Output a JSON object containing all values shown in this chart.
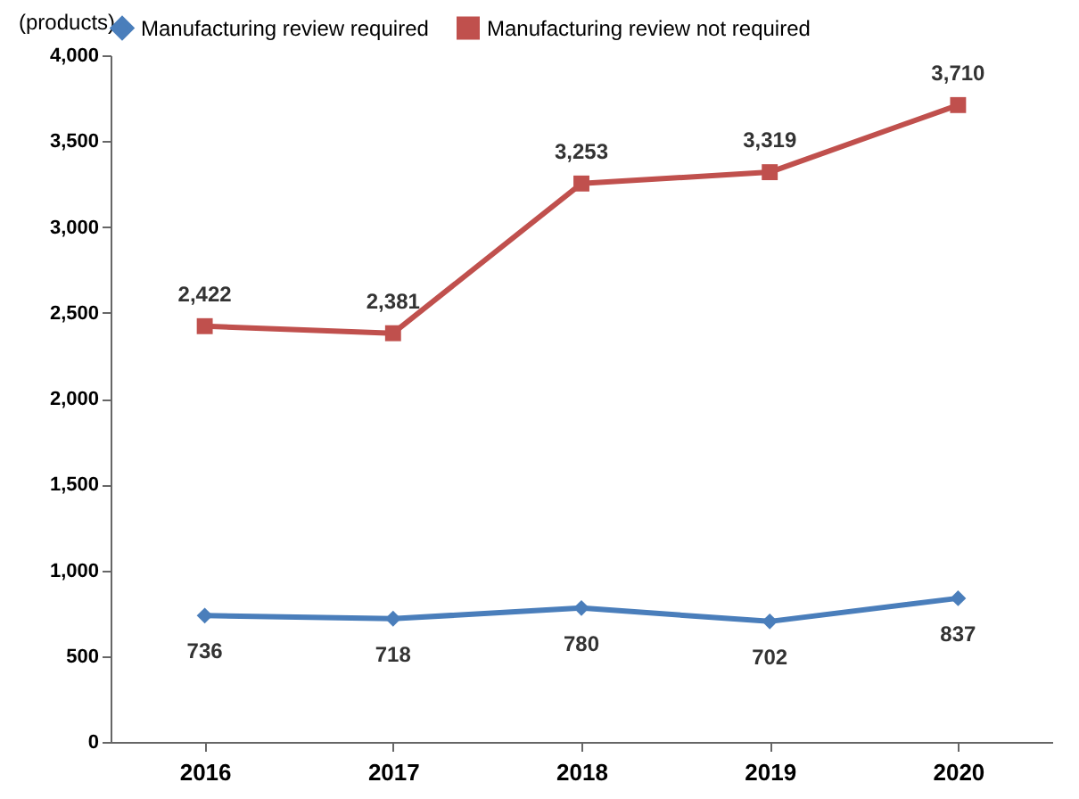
{
  "chart_data": {
    "type": "line",
    "ylabel": "(products)",
    "categories": [
      "2016",
      "2017",
      "2018",
      "2019",
      "2020"
    ],
    "series": [
      {
        "name": "Manufacturing review required",
        "color": "#4a7ebb",
        "marker": "diamond",
        "values": [
          736,
          718,
          780,
          702,
          837
        ],
        "value_labels": [
          "736",
          "718",
          "780",
          "702",
          "837"
        ]
      },
      {
        "name": "Manufacturing review not required",
        "color": "#c0504d",
        "marker": "square",
        "values": [
          2422,
          2381,
          3253,
          3319,
          3710
        ],
        "value_labels": [
          "2,422",
          "2,381",
          "3,253",
          "3,319",
          "3,710"
        ]
      }
    ],
    "ylim": [
      0,
      4000
    ],
    "yticks": [
      {
        "value": 0,
        "label": "0"
      },
      {
        "value": 500,
        "label": "500"
      },
      {
        "value": 1000,
        "label": "1,000"
      },
      {
        "value": 1500,
        "label": "1,500"
      },
      {
        "value": 2000,
        "label": "2,000"
      },
      {
        "value": 2500,
        "label": "2,500"
      },
      {
        "value": 3000,
        "label": "3,000"
      },
      {
        "value": 3500,
        "label": "3,500"
      },
      {
        "value": 4000,
        "label": "4,000"
      }
    ],
    "grid": false,
    "legend": "top",
    "line_style": "solid"
  }
}
